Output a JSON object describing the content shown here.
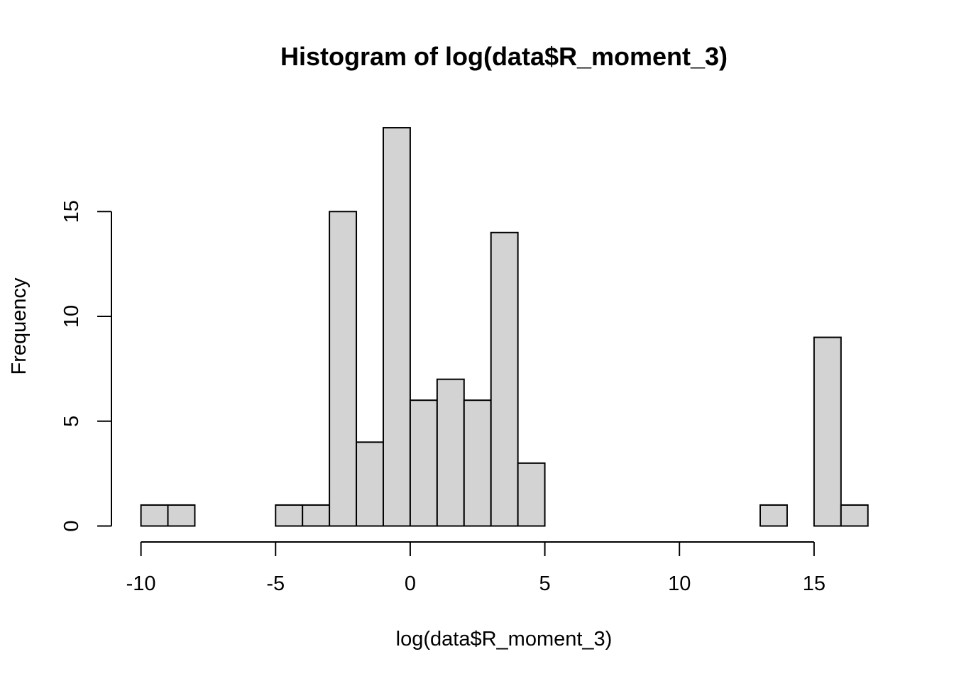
{
  "chart_data": {
    "type": "bar",
    "title": "Histogram of log(data$R_moment_3)",
    "xlabel": "log(data$R_moment_3)",
    "ylabel": "Frequency",
    "bin_edges": [
      -10,
      -9,
      -8,
      -7,
      -6,
      -5,
      -4,
      -3,
      -2,
      -1,
      0,
      1,
      2,
      3,
      4,
      5,
      6,
      7,
      8,
      9,
      10,
      11,
      12,
      13,
      14,
      15,
      16,
      17
    ],
    "values": [
      1,
      1,
      0,
      0,
      0,
      1,
      1,
      15,
      4,
      19,
      6,
      7,
      6,
      14,
      3,
      0,
      0,
      0,
      0,
      0,
      0,
      0,
      0,
      1,
      0,
      9,
      1
    ],
    "xlim": [
      -10,
      17
    ],
    "ylim": [
      0,
      19
    ],
    "x_ticks": [
      -10,
      -5,
      0,
      5,
      10,
      15
    ],
    "y_ticks": [
      0,
      5,
      10,
      15
    ],
    "grid": false,
    "bar_fill": "#d3d3d3",
    "bar_stroke": "#000000"
  }
}
